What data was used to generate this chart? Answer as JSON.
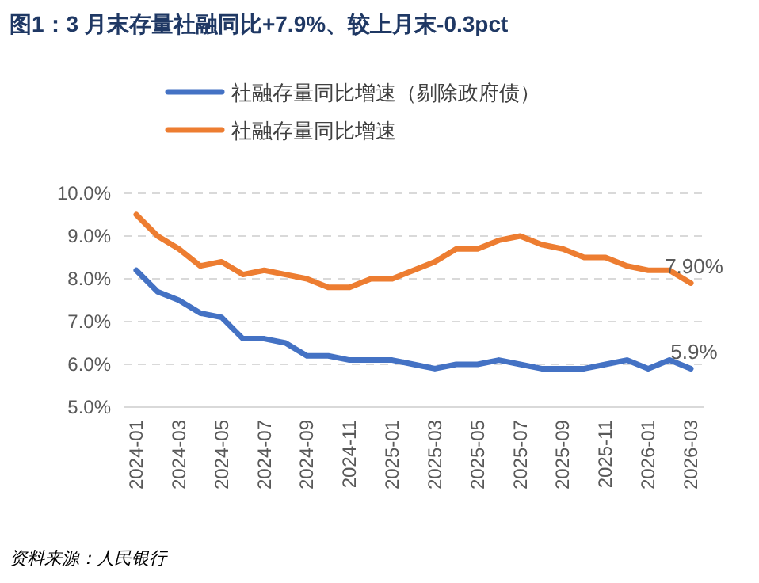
{
  "chart_data": {
    "type": "line",
    "title": "图1：3 月末存量社融同比+7.9%、较上月末-0.3pct",
    "categories": [
      "2024-01",
      null,
      "2024-03",
      null,
      "2024-05",
      null,
      "2024-07",
      null,
      "2024-09",
      null,
      "2024-11",
      null,
      "2025-01",
      null,
      "2025-03",
      null,
      "2025-05",
      null,
      "2025-07",
      null,
      "2025-09",
      null,
      "2025-11",
      null,
      "2026-01",
      null,
      "2026-03"
    ],
    "series": [
      {
        "name": "社融存量同比增速（剔除政府债）",
        "color": "#4472c4",
        "values": [
          8.2,
          7.7,
          7.5,
          7.2,
          7.1,
          6.6,
          6.6,
          6.5,
          6.2,
          6.2,
          6.1,
          6.1,
          6.1,
          6.0,
          5.9,
          6.0,
          6.0,
          6.1,
          6.0,
          5.9,
          5.9,
          5.9,
          6.0,
          6.1,
          5.9,
          6.1,
          5.9
        ],
        "value_labels": [
          null,
          null,
          null,
          null,
          null,
          null,
          null,
          null,
          null,
          null,
          null,
          null,
          null,
          null,
          null,
          null,
          null,
          null,
          null,
          null,
          null,
          null,
          null,
          null,
          null,
          null,
          "5.9%"
        ]
      },
      {
        "name": "社融存量同比增速",
        "color": "#ed7d31",
        "values": [
          9.5,
          9.0,
          8.7,
          8.3,
          8.4,
          8.1,
          8.2,
          8.1,
          8.0,
          7.8,
          7.8,
          8.0,
          8.0,
          8.2,
          8.4,
          8.7,
          8.7,
          8.9,
          9.0,
          8.8,
          8.7,
          8.5,
          8.5,
          8.3,
          8.2,
          8.2,
          7.9
        ],
        "value_labels": [
          null,
          null,
          null,
          null,
          null,
          null,
          null,
          null,
          null,
          null,
          null,
          null,
          null,
          null,
          null,
          null,
          null,
          null,
          null,
          null,
          null,
          null,
          null,
          null,
          null,
          null,
          "7.90%"
        ]
      }
    ],
    "ylim": [
      5,
      10
    ],
    "yticks": [
      {
        "value": 5,
        "label": "5.0%"
      },
      {
        "value": 6,
        "label": "6.0%"
      },
      {
        "value": 7,
        "label": "7.0%"
      },
      {
        "value": 8,
        "label": "8.0%"
      },
      {
        "value": 9,
        "label": "9.0%"
      },
      {
        "value": 10,
        "label": "10.0%"
      }
    ],
    "grid": "y",
    "legend": "top",
    "annotations": [
      "资料来源：人民银行"
    ]
  }
}
